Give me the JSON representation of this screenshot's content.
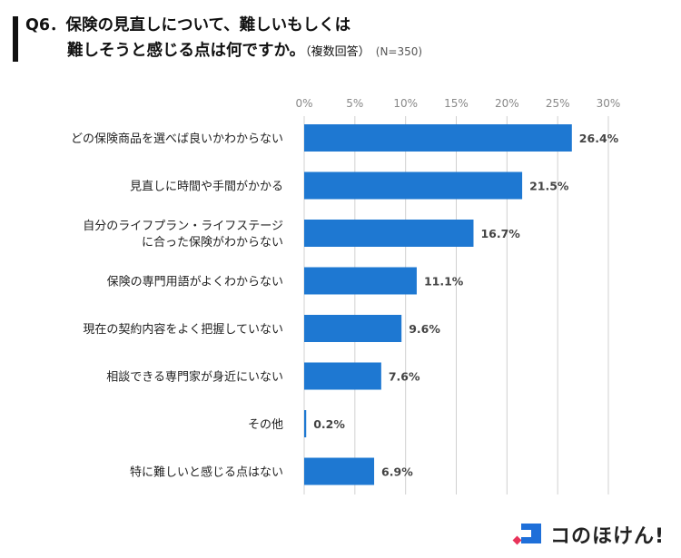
{
  "title": {
    "line1": "Q6．保険の見直しについて、難しいもしくは",
    "line2": "難しそうと感じる点は何ですか。",
    "sub": "（複数回答）",
    "n": "(N=350)"
  },
  "logo": {
    "text": "コのほけん!"
  },
  "colors": {
    "bar": "#1e78d2",
    "grid": "#d0d0d0",
    "tick": "#888888",
    "label": "#222222",
    "value": "#444444"
  },
  "chart_data": {
    "type": "bar",
    "orientation": "horizontal",
    "categories": [
      [
        "どの保険商品を選べば良いかわからない"
      ],
      [
        "見直しに時間や手間がかかる"
      ],
      [
        "自分のライフプラン・ライフステージ",
        "に合った保険がわからない"
      ],
      [
        "保険の専門用語がよくわからない"
      ],
      [
        "現在の契約内容をよく把握していない"
      ],
      [
        "相談できる専門家が身近にいない"
      ],
      [
        "その他"
      ],
      [
        "特に難しいと感じる点はない"
      ]
    ],
    "values": [
      26.4,
      21.5,
      16.7,
      11.1,
      9.6,
      7.6,
      0.2,
      6.9
    ],
    "value_labels": [
      "26.4%",
      "21.5%",
      "16.7%",
      "11.1%",
      "9.6%",
      "7.6%",
      "0.2%",
      "6.9%"
    ],
    "xticks": [
      0,
      5,
      10,
      15,
      20,
      25,
      30
    ],
    "xtick_labels": [
      "0%",
      "5%",
      "10%",
      "15%",
      "20%",
      "25%",
      "30%"
    ],
    "xlim": [
      0,
      30
    ],
    "grid": true
  }
}
